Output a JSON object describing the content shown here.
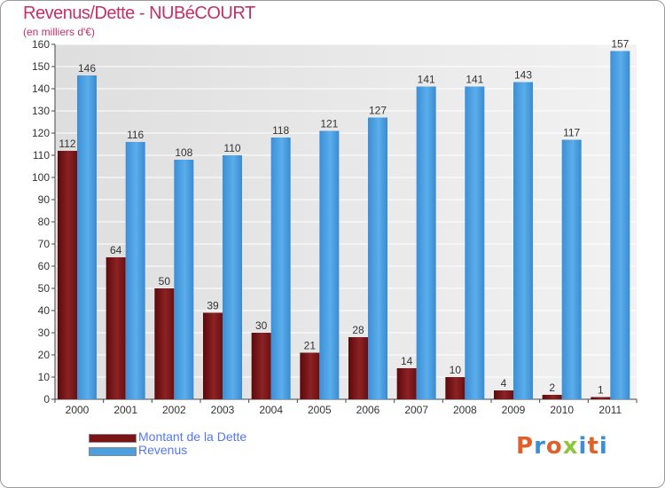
{
  "chart_data": {
    "type": "bar",
    "title": "Revenus/Dette - NUBéCOURT",
    "subtitle": "(en milliers d'€)",
    "categories": [
      "2000",
      "2001",
      "2002",
      "2003",
      "2004",
      "2005",
      "2006",
      "2007",
      "2008",
      "2009",
      "2010",
      "2011"
    ],
    "series": [
      {
        "name": "Montant de la Dette",
        "color": "#7a1416",
        "values": [
          112,
          64,
          50,
          39,
          30,
          21,
          28,
          14,
          10,
          4,
          2,
          1
        ]
      },
      {
        "name": "Revenus",
        "color": "#4a9fe0",
        "values": [
          146,
          116,
          108,
          110,
          118,
          121,
          127,
          141,
          141,
          143,
          117,
          157
        ]
      }
    ],
    "ylim": [
      0,
      160
    ],
    "ytick_step": 10,
    "grid": true,
    "legend_position": "bottom-left"
  },
  "logo": {
    "text": "Proxiti"
  }
}
